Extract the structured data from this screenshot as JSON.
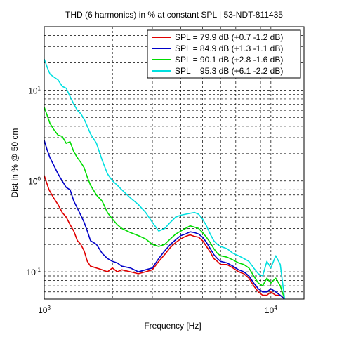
{
  "chart_data": {
    "type": "line",
    "title": "THD (6 harmonics) in % at constant SPL | 53-NDT-811435",
    "xlabel": "Frequency [Hz]",
    "ylabel": "Dist in % @ 50 cm",
    "xscale": "log",
    "yscale": "log",
    "xlim": [
      1000,
      14000
    ],
    "ylim": [
      0.05,
      50
    ],
    "grid": true,
    "legend_position": "top-right",
    "x_ticks": [
      {
        "base": "10",
        "exp": "3"
      },
      {
        "base": "10",
        "exp": "4"
      }
    ],
    "y_ticks": [
      {
        "base": "10",
        "exp": "-1"
      },
      {
        "base": "10",
        "exp": "0"
      },
      {
        "base": "10",
        "exp": "1"
      }
    ],
    "series": [
      {
        "name": "SPL = 79.9 dB (+0.7 -1.2 dB)",
        "color": "#e00000",
        "points": [
          [
            1000,
            1.15
          ],
          [
            1050,
            0.8
          ],
          [
            1100,
            0.65
          ],
          [
            1150,
            0.55
          ],
          [
            1200,
            0.45
          ],
          [
            1250,
            0.4
          ],
          [
            1300,
            0.33
          ],
          [
            1350,
            0.28
          ],
          [
            1400,
            0.22
          ],
          [
            1450,
            0.2
          ],
          [
            1500,
            0.17
          ],
          [
            1550,
            0.13
          ],
          [
            1600,
            0.115
          ],
          [
            1700,
            0.11
          ],
          [
            1800,
            0.105
          ],
          [
            1900,
            0.1
          ],
          [
            2000,
            0.11
          ],
          [
            2100,
            0.1
          ],
          [
            2200,
            0.105
          ],
          [
            2400,
            0.1
          ],
          [
            2600,
            0.095
          ],
          [
            2800,
            0.1
          ],
          [
            3000,
            0.105
          ],
          [
            3200,
            0.13
          ],
          [
            3400,
            0.155
          ],
          [
            3600,
            0.185
          ],
          [
            3800,
            0.21
          ],
          [
            4000,
            0.23
          ],
          [
            4200,
            0.245
          ],
          [
            4400,
            0.255
          ],
          [
            4600,
            0.245
          ],
          [
            4800,
            0.24
          ],
          [
            5000,
            0.22
          ],
          [
            5200,
            0.19
          ],
          [
            5400,
            0.165
          ],
          [
            5600,
            0.14
          ],
          [
            5800,
            0.13
          ],
          [
            6000,
            0.12
          ],
          [
            6400,
            0.12
          ],
          [
            6800,
            0.11
          ],
          [
            7200,
            0.1
          ],
          [
            7600,
            0.095
          ],
          [
            8000,
            0.085
          ],
          [
            8400,
            0.07
          ],
          [
            8800,
            0.06
          ],
          [
            9200,
            0.055
          ],
          [
            9600,
            0.055
          ],
          [
            10000,
            0.06
          ],
          [
            10500,
            0.055
          ],
          [
            11000,
            0.055
          ],
          [
            11500,
            0.05
          ]
        ]
      },
      {
        "name": "SPL = 84.9 dB (+1.3 -1.1 dB)",
        "color": "#0000c8",
        "points": [
          [
            1000,
            2.8
          ],
          [
            1030,
            2.2
          ],
          [
            1060,
            1.8
          ],
          [
            1100,
            1.5
          ],
          [
            1150,
            1.2
          ],
          [
            1200,
            1.0
          ],
          [
            1250,
            0.85
          ],
          [
            1300,
            0.8
          ],
          [
            1350,
            0.6
          ],
          [
            1400,
            0.5
          ],
          [
            1450,
            0.42
          ],
          [
            1500,
            0.35
          ],
          [
            1550,
            0.28
          ],
          [
            1600,
            0.22
          ],
          [
            1700,
            0.2
          ],
          [
            1800,
            0.16
          ],
          [
            1900,
            0.14
          ],
          [
            2000,
            0.13
          ],
          [
            2100,
            0.125
          ],
          [
            2200,
            0.115
          ],
          [
            2400,
            0.11
          ],
          [
            2600,
            0.1
          ],
          [
            2800,
            0.105
          ],
          [
            3000,
            0.11
          ],
          [
            3200,
            0.14
          ],
          [
            3400,
            0.17
          ],
          [
            3600,
            0.2
          ],
          [
            3800,
            0.225
          ],
          [
            4000,
            0.25
          ],
          [
            4200,
            0.26
          ],
          [
            4400,
            0.275
          ],
          [
            4600,
            0.27
          ],
          [
            4800,
            0.26
          ],
          [
            5000,
            0.24
          ],
          [
            5200,
            0.21
          ],
          [
            5400,
            0.18
          ],
          [
            5600,
            0.155
          ],
          [
            5800,
            0.14
          ],
          [
            6000,
            0.13
          ],
          [
            6400,
            0.125
          ],
          [
            6800,
            0.115
          ],
          [
            7200,
            0.105
          ],
          [
            7600,
            0.1
          ],
          [
            8000,
            0.09
          ],
          [
            8400,
            0.075
          ],
          [
            8800,
            0.065
          ],
          [
            9200,
            0.06
          ],
          [
            9600,
            0.06
          ],
          [
            10000,
            0.065
          ],
          [
            10500,
            0.06
          ],
          [
            11000,
            0.055
          ],
          [
            11500,
            0.05
          ]
        ]
      },
      {
        "name": "SPL = 90.1 dB (+2.8 -1.6 dB)",
        "color": "#00dc00",
        "points": [
          [
            1000,
            6.5
          ],
          [
            1030,
            5.3
          ],
          [
            1060,
            4.3
          ],
          [
            1100,
            3.7
          ],
          [
            1150,
            3.2
          ],
          [
            1200,
            3.1
          ],
          [
            1250,
            2.6
          ],
          [
            1300,
            2.7
          ],
          [
            1350,
            2.1
          ],
          [
            1400,
            1.8
          ],
          [
            1450,
            1.6
          ],
          [
            1500,
            1.4
          ],
          [
            1550,
            1.1
          ],
          [
            1600,
            0.9
          ],
          [
            1700,
            0.7
          ],
          [
            1800,
            0.6
          ],
          [
            1900,
            0.45
          ],
          [
            2000,
            0.38
          ],
          [
            2100,
            0.33
          ],
          [
            2200,
            0.3
          ],
          [
            2400,
            0.27
          ],
          [
            2600,
            0.25
          ],
          [
            2800,
            0.23
          ],
          [
            3000,
            0.2
          ],
          [
            3200,
            0.19
          ],
          [
            3400,
            0.2
          ],
          [
            3600,
            0.23
          ],
          [
            3800,
            0.26
          ],
          [
            4000,
            0.28
          ],
          [
            4200,
            0.3
          ],
          [
            4400,
            0.32
          ],
          [
            4600,
            0.31
          ],
          [
            4800,
            0.3
          ],
          [
            5000,
            0.27
          ],
          [
            5200,
            0.24
          ],
          [
            5400,
            0.21
          ],
          [
            5600,
            0.18
          ],
          [
            5800,
            0.16
          ],
          [
            6000,
            0.15
          ],
          [
            6400,
            0.145
          ],
          [
            6800,
            0.135
          ],
          [
            7200,
            0.125
          ],
          [
            7600,
            0.12
          ],
          [
            8000,
            0.11
          ],
          [
            8400,
            0.09
          ],
          [
            8800,
            0.075
          ],
          [
            9200,
            0.07
          ],
          [
            9600,
            0.085
          ],
          [
            10000,
            0.075
          ],
          [
            10500,
            0.085
          ],
          [
            11000,
            0.07
          ],
          [
            11500,
            0.05
          ]
        ]
      },
      {
        "name": "SPL = 95.3 dB (+6.1 -2.2 dB)",
        "color": "#00e0e0",
        "points": [
          [
            1000,
            22
          ],
          [
            1030,
            18
          ],
          [
            1060,
            15
          ],
          [
            1100,
            14
          ],
          [
            1150,
            13
          ],
          [
            1200,
            11
          ],
          [
            1250,
            10.5
          ],
          [
            1300,
            8.5
          ],
          [
            1350,
            7
          ],
          [
            1400,
            6
          ],
          [
            1450,
            5.5
          ],
          [
            1500,
            4.8
          ],
          [
            1550,
            4
          ],
          [
            1600,
            3.3
          ],
          [
            1700,
            2.6
          ],
          [
            1800,
            1.7
          ],
          [
            1900,
            1.2
          ],
          [
            2000,
            1.0
          ],
          [
            2100,
            0.9
          ],
          [
            2200,
            0.8
          ],
          [
            2400,
            0.65
          ],
          [
            2600,
            0.55
          ],
          [
            2800,
            0.45
          ],
          [
            3000,
            0.35
          ],
          [
            3200,
            0.28
          ],
          [
            3400,
            0.3
          ],
          [
            3600,
            0.35
          ],
          [
            3800,
            0.4
          ],
          [
            4000,
            0.42
          ],
          [
            4200,
            0.43
          ],
          [
            4400,
            0.44
          ],
          [
            4600,
            0.45
          ],
          [
            4800,
            0.43
          ],
          [
            5000,
            0.38
          ],
          [
            5200,
            0.32
          ],
          [
            5400,
            0.26
          ],
          [
            5600,
            0.22
          ],
          [
            5800,
            0.2
          ],
          [
            6000,
            0.19
          ],
          [
            6400,
            0.18
          ],
          [
            6800,
            0.16
          ],
          [
            7200,
            0.15
          ],
          [
            7600,
            0.14
          ],
          [
            8000,
            0.13
          ],
          [
            8400,
            0.11
          ],
          [
            8800,
            0.095
          ],
          [
            9200,
            0.09
          ],
          [
            9600,
            0.13
          ],
          [
            10000,
            0.11
          ],
          [
            10500,
            0.15
          ],
          [
            11000,
            0.12
          ],
          [
            11500,
            0.05
          ]
        ]
      }
    ]
  }
}
